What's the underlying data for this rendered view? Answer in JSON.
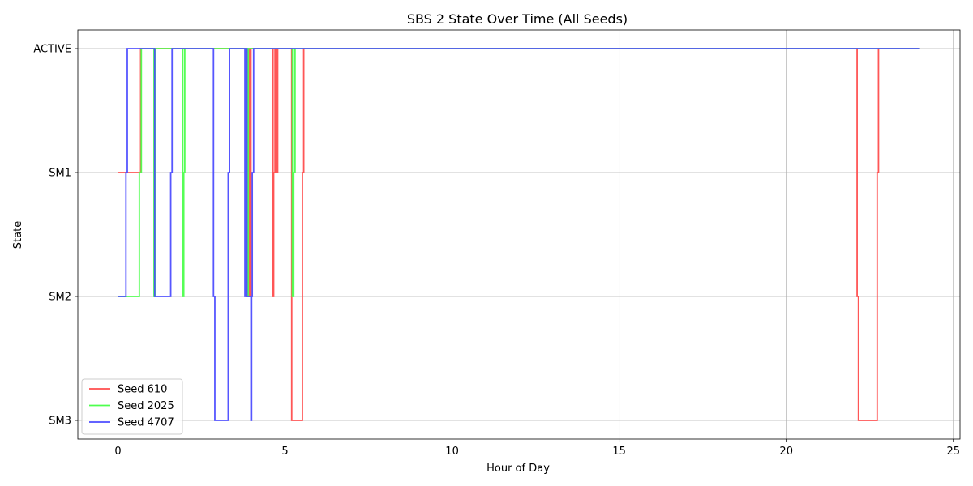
{
  "chart_data": {
    "type": "line",
    "title": "SBS 2 State Over Time (All Seeds)",
    "xlabel": "Hour of Day",
    "ylabel": "State",
    "xlim": [
      -1.2,
      25.2
    ],
    "xticks": [
      0,
      5,
      10,
      15,
      20,
      25
    ],
    "y_categories": [
      "SM3",
      "SM2",
      "SM1",
      "ACTIVE"
    ],
    "grid": true,
    "legend_position": "lower-left",
    "series": [
      {
        "name": "Seed 610",
        "color": "#ff4d4d",
        "steps": [
          [
            0.0,
            2
          ],
          [
            0.68,
            3
          ],
          [
            1.18,
            3
          ],
          [
            1.6,
            3
          ],
          [
            3.8,
            3
          ],
          [
            3.84,
            1
          ],
          [
            3.9,
            3
          ],
          [
            3.94,
            1
          ],
          [
            3.98,
            3
          ],
          [
            4.62,
            3
          ],
          [
            4.64,
            1
          ],
          [
            4.66,
            2
          ],
          [
            4.7,
            3
          ],
          [
            4.74,
            2
          ],
          [
            4.78,
            3
          ],
          [
            5.2,
            0
          ],
          [
            5.52,
            2
          ],
          [
            5.56,
            3
          ],
          [
            22.12,
            1
          ],
          [
            22.16,
            0
          ],
          [
            22.72,
            2
          ],
          [
            22.76,
            3
          ],
          [
            24.0,
            3
          ]
        ]
      },
      {
        "name": "Seed 2025",
        "color": "#4dff4d",
        "steps": [
          [
            0.0,
            1
          ],
          [
            0.25,
            1
          ],
          [
            0.64,
            2
          ],
          [
            0.7,
            3
          ],
          [
            1.06,
            3
          ],
          [
            1.08,
            1
          ],
          [
            1.12,
            3
          ],
          [
            1.9,
            3
          ],
          [
            1.94,
            1
          ],
          [
            1.97,
            2
          ],
          [
            2.0,
            3
          ],
          [
            3.82,
            3
          ],
          [
            3.86,
            1
          ],
          [
            3.9,
            3
          ],
          [
            5.22,
            1
          ],
          [
            5.26,
            2
          ],
          [
            5.3,
            3
          ],
          [
            24.0,
            3
          ]
        ]
      },
      {
        "name": "Seed 4707",
        "color": "#4d4dff",
        "steps": [
          [
            0.0,
            1
          ],
          [
            0.24,
            2
          ],
          [
            0.28,
            3
          ],
          [
            1.06,
            3
          ],
          [
            1.1,
            1
          ],
          [
            1.58,
            2
          ],
          [
            1.62,
            3
          ],
          [
            2.86,
            1
          ],
          [
            2.9,
            0
          ],
          [
            3.3,
            2
          ],
          [
            3.34,
            3
          ],
          [
            3.76,
            3
          ],
          [
            3.8,
            1
          ],
          [
            3.84,
            3
          ],
          [
            3.86,
            1
          ],
          [
            3.98,
            0
          ],
          [
            4.0,
            1
          ],
          [
            4.02,
            2
          ],
          [
            4.06,
            3
          ],
          [
            24.0,
            3
          ]
        ]
      }
    ]
  }
}
